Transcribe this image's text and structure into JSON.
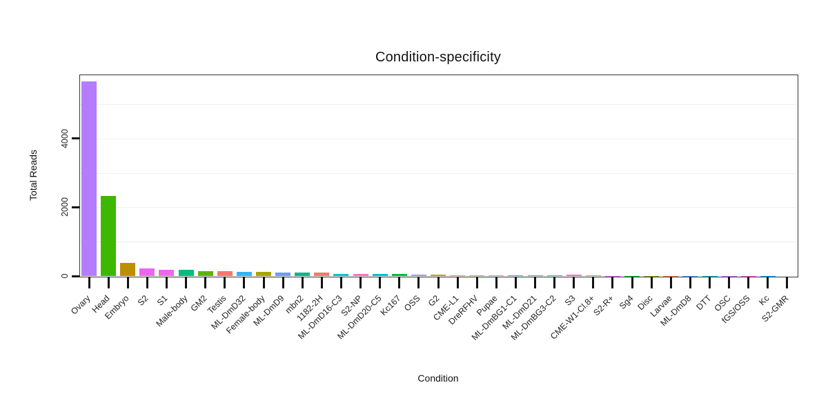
{
  "chart_data": {
    "type": "bar",
    "title": "Condition-specificity",
    "xlabel": "Condition",
    "ylabel": "Total Reads",
    "ylim": [
      0,
      5860
    ],
    "yticks": [
      0,
      2000,
      4000
    ],
    "grid": true,
    "legend": "none",
    "categories": [
      "Ovary",
      "Head",
      "Embryo",
      "S2",
      "S1",
      "Male-body",
      "GM2",
      "Testis",
      "ML-DmD32",
      "Female-body",
      "ML-DmD9",
      "mbn2",
      "1182-2H",
      "ML-DmD16-C3",
      "S2-NP",
      "ML-DmD20-C5",
      "Kc167",
      "OSS",
      "G2",
      "CME-L1",
      "DreRFHV",
      "Pupae",
      "ML-DmBG1-C1",
      "ML-DmD21",
      "ML-DmBG3-C2",
      "S3",
      "CME-W1-Cl.8+",
      "S2-R+",
      "Sg4",
      "Disc",
      "Larvae",
      "ML-DmD8",
      "DTT",
      "OSC",
      "fGS/OSS",
      "Kc",
      "S2-GMR"
    ],
    "values": [
      5650,
      2320,
      380,
      230,
      185,
      175,
      140,
      150,
      120,
      115,
      105,
      100,
      95,
      55,
      55,
      55,
      55,
      50,
      35,
      30,
      30,
      30,
      30,
      30,
      25,
      40,
      12,
      8,
      6,
      5,
      5,
      4,
      3,
      3,
      2,
      2,
      1
    ],
    "colors": [
      "#b47cff",
      "#3db700",
      "#bc8f00",
      "#ea65f0",
      "#ef67ec",
      "#00bd7e",
      "#5eb300",
      "#f8766d",
      "#2fb6f5",
      "#a9a400",
      "#6e9bf8",
      "#00b887",
      "#f8766d",
      "#00c0c8",
      "#ff6fc0",
      "#00bfc4",
      "#00ba38",
      "#9590ff",
      "#aba300",
      "#f8766d",
      "#de9200",
      "#c77cff",
      "#00b0f6",
      "#00bfc4",
      "#00bcd8",
      "#ff69b4",
      "#f8766d",
      "#e76bf3",
      "#00ba38",
      "#a3a500",
      "#f8766d",
      "#619cff",
      "#00bfc4",
      "#c77cff",
      "#ff61cc",
      "#00b0f6",
      "#f8766d"
    ]
  }
}
